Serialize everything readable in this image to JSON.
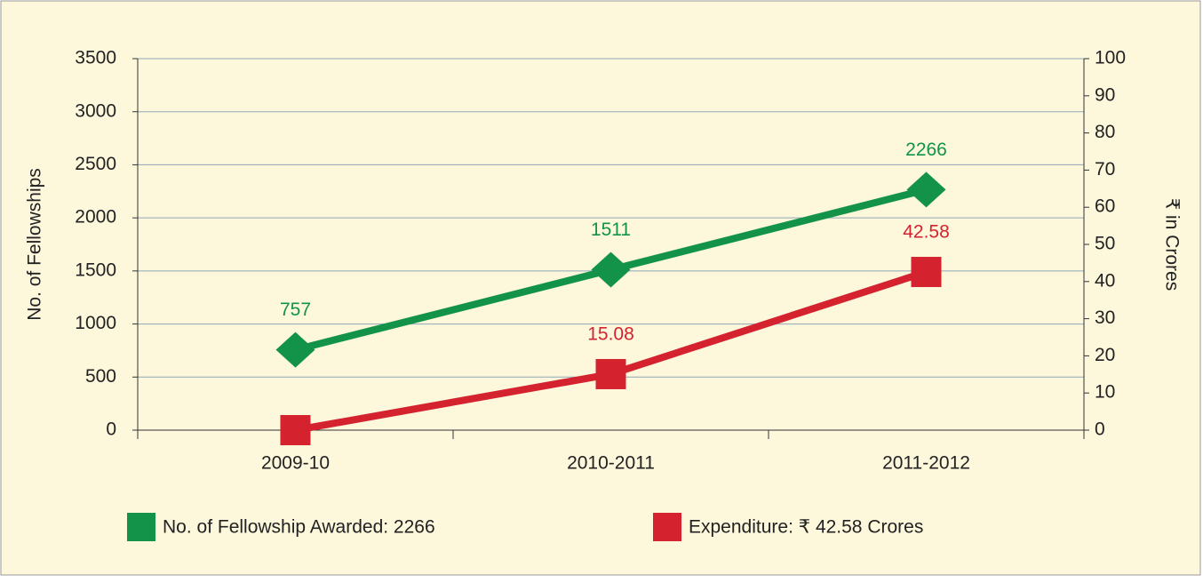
{
  "chart_data": {
    "type": "line",
    "categories": [
      "2009-10",
      "2010-2011",
      "2011-2012"
    ],
    "series": [
      {
        "name": "No. of Fellowship Awarded: 2266",
        "color": "#13934a",
        "marker": "diamond",
        "values": [
          757,
          1511,
          2266
        ]
      },
      {
        "name": "Expenditure: ₹ 42.58 Crores",
        "color": "#d4232f",
        "marker": "square",
        "axis": "y2",
        "values": [
          0,
          15.08,
          42.58
        ],
        "value_labels": [
          null,
          "15.08",
          "42.58"
        ]
      }
    ],
    "ylabel": "No. of Fellowships",
    "y2label": "₹ in Crores",
    "ylim": [
      0,
      3500
    ],
    "yticks": [
      0,
      500,
      1000,
      1500,
      2000,
      2500,
      3000,
      3500
    ],
    "y2lim": [
      0,
      100
    ],
    "y2ticks": [
      0,
      10,
      20,
      30,
      40,
      50,
      60,
      70,
      80,
      90,
      100
    ],
    "grid": true,
    "legend": "bottom"
  }
}
